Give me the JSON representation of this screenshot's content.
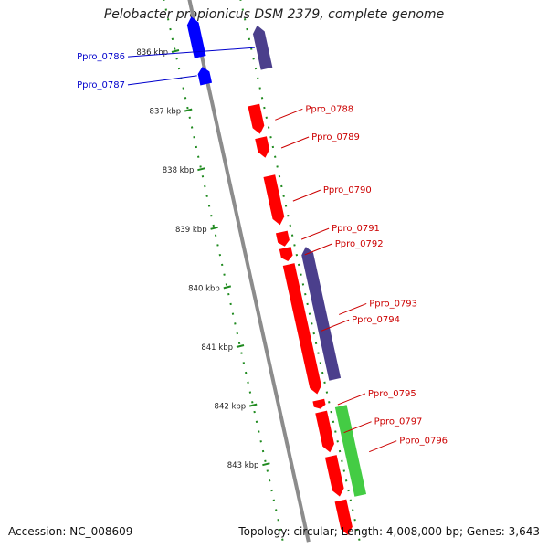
{
  "title": "Pelobacter propionicus DSM 2379, complete genome",
  "footer": {
    "accession": "Accession: NC_008609",
    "info": "Topology: circular; Length: 4,008,000 bp; Genes: 3,643"
  },
  "colors": {
    "backbone": "#8c8c8c",
    "tick_dots": "#1f8a1f",
    "cds_forward": "#ff0000",
    "cds_reverse_dark": "#4b3f8c",
    "cds_reverse_blue": "#0000ff",
    "rna": "#44cc44",
    "label_forward": "#cc0000",
    "label_reverse": "#0000cc"
  },
  "scale": {
    "unit": "kbp",
    "ticks": [
      {
        "value": 836,
        "label": "836 kbp"
      },
      {
        "value": 837,
        "label": "837 kbp"
      },
      {
        "value": 838,
        "label": "838 kbp"
      },
      {
        "value": 839,
        "label": "839 kbp"
      },
      {
        "value": 840,
        "label": "840 kbp"
      },
      {
        "value": 841,
        "label": "841 kbp"
      },
      {
        "value": 842,
        "label": "842 kbp"
      },
      {
        "value": 843,
        "label": "843 kbp"
      }
    ]
  },
  "features": [
    {
      "id": "Ppro_0786",
      "track": "reverse",
      "kind": "cds_reverse_dark",
      "start": 835.55,
      "end": 836.3,
      "label": "Ppro_0786"
    },
    {
      "id": "Ppro_0786b",
      "track": "reverse_inner",
      "kind": "cds_reverse_blue",
      "start": 835.4,
      "end": 836.1,
      "label": ""
    },
    {
      "id": "Ppro_0787",
      "track": "reverse_inner",
      "kind": "cds_reverse_blue",
      "start": 836.25,
      "end": 836.55,
      "label": "Ppro_0787"
    },
    {
      "id": "Ppro_0788",
      "track": "forward",
      "kind": "cds_forward",
      "start": 836.9,
      "end": 837.4,
      "label": "Ppro_0788"
    },
    {
      "id": "Ppro_0789",
      "track": "forward",
      "kind": "cds_forward",
      "start": 837.45,
      "end": 837.8,
      "label": "Ppro_0789"
    },
    {
      "id": "Ppro_0790",
      "track": "forward",
      "kind": "cds_forward",
      "start": 838.1,
      "end": 838.95,
      "label": "Ppro_0790"
    },
    {
      "id": "Ppro_0791",
      "track": "forward",
      "kind": "cds_forward",
      "start": 839.05,
      "end": 839.3,
      "label": "Ppro_0791"
    },
    {
      "id": "Ppro_0792",
      "track": "forward",
      "kind": "cds_forward",
      "start": 839.32,
      "end": 839.55,
      "label": "Ppro_0792"
    },
    {
      "id": "Ppro_0793",
      "track": "reverse",
      "kind": "cds_reverse_dark",
      "start": 839.3,
      "end": 841.6,
      "label": "Ppro_0793"
    },
    {
      "id": "Ppro_0794",
      "track": "forward",
      "kind": "cds_forward",
      "start": 839.6,
      "end": 841.85,
      "label": "Ppro_0794"
    },
    {
      "id": "Ppro_0795",
      "track": "forward",
      "kind": "cds_forward",
      "start": 841.9,
      "end": 842.05,
      "label": "Ppro_0795"
    },
    {
      "id": "Ppro_0796",
      "track": "reverse",
      "kind": "rna",
      "start": 842.0,
      "end": 843.55,
      "label": "Ppro_0796"
    },
    {
      "id": "Ppro_0797",
      "track": "forward",
      "kind": "cds_forward",
      "start": 842.1,
      "end": 842.8,
      "label": "Ppro_0797"
    },
    {
      "id": "Ppro_0797b",
      "track": "forward",
      "kind": "cds_forward",
      "start": 842.85,
      "end": 843.55,
      "label": ""
    },
    {
      "id": "Ppro_0798",
      "track": "forward",
      "kind": "cds_forward",
      "start": 843.6,
      "end": 844.2,
      "label": ""
    }
  ]
}
